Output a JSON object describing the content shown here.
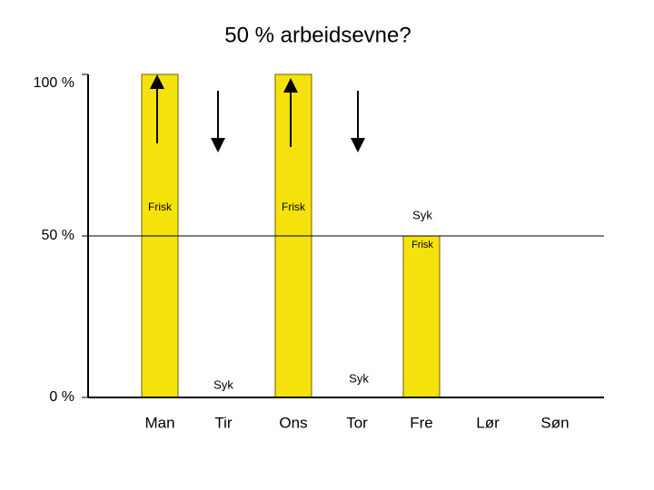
{
  "chart_data": {
    "type": "bar",
    "title": "50 % arbeidsevne?",
    "categories": [
      "Man",
      "Tir",
      "Ons",
      "Tor",
      "Fre",
      "Lør",
      "Søn"
    ],
    "values": [
      100,
      0,
      100,
      0,
      50,
      0,
      0
    ],
    "color": "#f5e20c",
    "ylim": [
      0,
      100
    ],
    "yticks": [
      {
        "value": 0,
        "label": "0 %"
      },
      {
        "value": 50,
        "label": "50 %"
      },
      {
        "value": 100,
        "label": "100 %"
      }
    ],
    "annotations": [
      "Frisk",
      "Frisk",
      "Syk",
      "Frisk",
      "Syk",
      "Syk"
    ]
  }
}
